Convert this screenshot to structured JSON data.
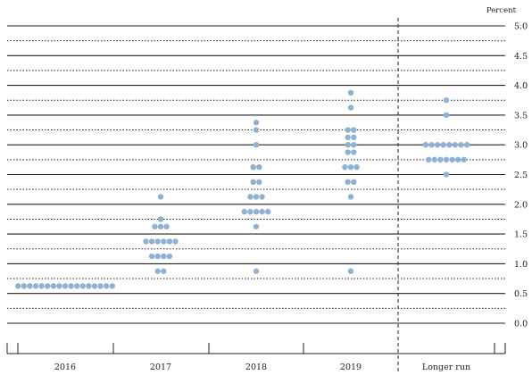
{
  "chart_data": {
    "type": "scatter",
    "title": "",
    "xlabel": "",
    "ylabel": "Percent",
    "categories": [
      "2016",
      "2017",
      "2018",
      "2019",
      "Longer run"
    ],
    "ylim": [
      0,
      5
    ],
    "y_ticks": [
      "0.0",
      "0.5",
      "1.0",
      "1.5",
      "2.0",
      "2.5",
      "3.0",
      "3.5",
      "4.0",
      "4.5",
      "5.0"
    ],
    "y_axis_position": "right",
    "grid": true,
    "dot_color": "#8fb2d4",
    "separator": "dashed vertical line between 2019 and Longer run",
    "series": [
      {
        "category": "2016",
        "points": [
          {
            "y": 0.625,
            "count": 17
          }
        ]
      },
      {
        "category": "2017",
        "points": [
          {
            "y": 0.875,
            "count": 2
          },
          {
            "y": 1.125,
            "count": 4
          },
          {
            "y": 1.375,
            "count": 6
          },
          {
            "y": 1.625,
            "count": 3
          },
          {
            "y": 1.75,
            "count": 1
          },
          {
            "y": 2.125,
            "count": 1
          }
        ]
      },
      {
        "category": "2018",
        "points": [
          {
            "y": 0.875,
            "count": 1
          },
          {
            "y": 1.625,
            "count": 1
          },
          {
            "y": 1.875,
            "count": 5
          },
          {
            "y": 2.125,
            "count": 3
          },
          {
            "y": 2.375,
            "count": 2
          },
          {
            "y": 2.625,
            "count": 2
          },
          {
            "y": 3.0,
            "count": 1
          },
          {
            "y": 3.25,
            "count": 1
          },
          {
            "y": 3.375,
            "count": 1
          }
        ]
      },
      {
        "category": "2019",
        "points": [
          {
            "y": 0.875,
            "count": 1
          },
          {
            "y": 2.125,
            "count": 1
          },
          {
            "y": 2.375,
            "count": 2
          },
          {
            "y": 2.625,
            "count": 3
          },
          {
            "y": 2.875,
            "count": 2
          },
          {
            "y": 3.0,
            "count": 2
          },
          {
            "y": 3.125,
            "count": 2
          },
          {
            "y": 3.25,
            "count": 2
          },
          {
            "y": 3.625,
            "count": 1
          },
          {
            "y": 3.875,
            "count": 1
          }
        ]
      },
      {
        "category": "Longer run",
        "points": [
          {
            "y": 2.5,
            "count": 1
          },
          {
            "y": 2.75,
            "count": 7
          },
          {
            "y": 3.0,
            "count": 8
          },
          {
            "y": 3.5,
            "count": 1
          },
          {
            "y": 3.75,
            "count": 1
          }
        ]
      }
    ]
  }
}
